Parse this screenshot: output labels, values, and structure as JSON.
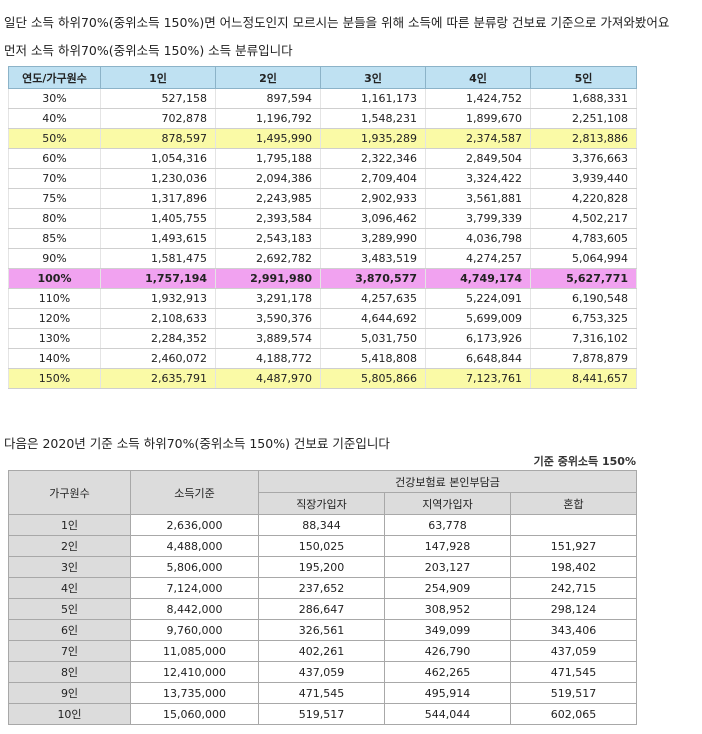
{
  "text": {
    "line1": "일단 소득 하위70%(중위소득 150%)면 어느정도인지 모르시는 분들을 위해 소득에 따른 분류랑 건보료 기준으로 가져와봤어요",
    "line2": "먼저 소득 하위70%(중위소득 150%) 소득 분류입니다",
    "line3": "다음은 2020년 기준 소득 하위70%(중위소득 150%) 건보료 기준입니다",
    "note": "기준 중위소득 150%"
  },
  "table1": {
    "header": [
      "연도/가구원수",
      "1인",
      "2인",
      "3인",
      "4인",
      "5인"
    ],
    "rows": [
      [
        "30%",
        "527,158",
        "897,594",
        "1,161,173",
        "1,424,752",
        "1,688,331"
      ],
      [
        "40%",
        "702,878",
        "1,196,792",
        "1,548,231",
        "1,899,670",
        "2,251,108"
      ],
      [
        "50%",
        "878,597",
        "1,495,990",
        "1,935,289",
        "2,374,587",
        "2,813,886"
      ],
      [
        "60%",
        "1,054,316",
        "1,795,188",
        "2,322,346",
        "2,849,504",
        "3,376,663"
      ],
      [
        "70%",
        "1,230,036",
        "2,094,386",
        "2,709,404",
        "3,324,422",
        "3,939,440"
      ],
      [
        "75%",
        "1,317,896",
        "2,243,985",
        "2,902,933",
        "3,561,881",
        "4,220,828"
      ],
      [
        "80%",
        "1,405,755",
        "2,393,584",
        "3,096,462",
        "3,799,339",
        "4,502,217"
      ],
      [
        "85%",
        "1,493,615",
        "2,543,183",
        "3,289,990",
        "4,036,798",
        "4,783,605"
      ],
      [
        "90%",
        "1,581,475",
        "2,692,782",
        "3,483,519",
        "4,274,257",
        "5,064,994"
      ],
      [
        "100%",
        "1,757,194",
        "2,991,980",
        "3,870,577",
        "4,749,174",
        "5,627,771"
      ],
      [
        "110%",
        "1,932,913",
        "3,291,178",
        "4,257,635",
        "5,224,091",
        "6,190,548"
      ],
      [
        "120%",
        "2,108,633",
        "3,590,376",
        "4,644,692",
        "5,699,009",
        "6,753,325"
      ],
      [
        "130%",
        "2,284,352",
        "3,889,574",
        "5,031,750",
        "6,173,926",
        "7,316,102"
      ],
      [
        "140%",
        "2,460,072",
        "4,188,772",
        "5,418,808",
        "6,648,844",
        "7,878,879"
      ],
      [
        "150%",
        "2,635,791",
        "4,487,970",
        "5,805,866",
        "7,123,761",
        "8,441,657"
      ]
    ]
  },
  "table2": {
    "header_top": [
      "가구원수",
      "소득기준",
      "건강보험료 본인부담금"
    ],
    "header_sub": [
      "직장가입자",
      "지역가입자",
      "혼합"
    ],
    "rows": [
      [
        "1인",
        "2,636,000",
        "88,344",
        "63,778",
        null
      ],
      [
        "2인",
        "4,488,000",
        "150,025",
        "147,928",
        "151,927"
      ],
      [
        "3인",
        "5,806,000",
        "195,200",
        "203,127",
        "198,402"
      ],
      [
        "4인",
        "7,124,000",
        "237,652",
        "254,909",
        "242,715"
      ],
      [
        "5인",
        "8,442,000",
        "286,647",
        "308,952",
        "298,124"
      ],
      [
        "6인",
        "9,760,000",
        "326,561",
        "349,099",
        "343,406"
      ],
      [
        "7인",
        "11,085,000",
        "402,261",
        "426,790",
        "437,059"
      ],
      [
        "8인",
        "12,410,000",
        "437,059",
        "462,265",
        "471,545"
      ],
      [
        "9인",
        "13,735,000",
        "471,545",
        "495,914",
        "519,517"
      ],
      [
        "10인",
        "15,060,000",
        "519,517",
        "544,044",
        "602,065"
      ]
    ]
  }
}
